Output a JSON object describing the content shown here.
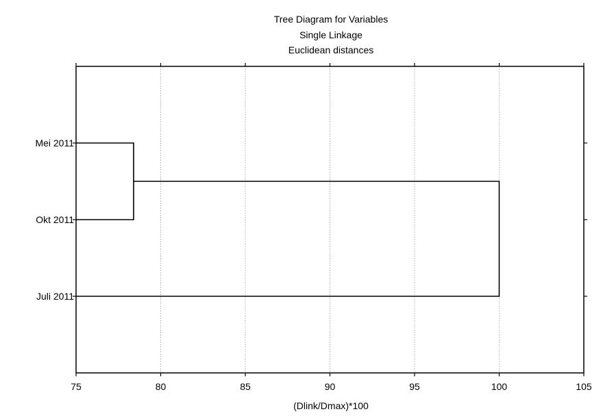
{
  "chart_data": {
    "type": "dendrogram",
    "title": [
      "Tree Diagram for  Variables",
      "Single Linkage",
      "Euclidean distances"
    ],
    "xlabel": "(Dlink/Dmax)*100",
    "ylabel": "",
    "xlim": [
      75,
      105
    ],
    "xticks": [
      "75",
      "80",
      "85",
      "90",
      "95",
      "100",
      "105"
    ],
    "grid": true,
    "leaves": [
      "Mei 2011",
      "Okt 2011",
      "Juli 2011"
    ],
    "merges": [
      {
        "a": "Mei 2011",
        "b": "Okt 2011",
        "distance": 78.4
      },
      {
        "a": "Mei 2011 + Okt 2011",
        "b": "Juli 2011",
        "distance": 100
      }
    ]
  }
}
